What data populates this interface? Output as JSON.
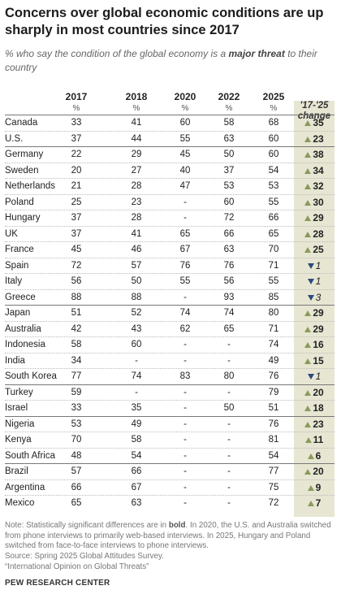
{
  "title": "Concerns over global economic conditions are up sharply in most countries since 2017",
  "subtitle_prefix": "% who say the condition of the global economy is a ",
  "subtitle_emph": "major threat",
  "subtitle_suffix": " to their country",
  "columns": [
    "2017",
    "2018",
    "2020",
    "2022",
    "2025"
  ],
  "pct_symbol": "%",
  "change_header": "'17-'25 change",
  "chart_data": {
    "type": "table",
    "columns": [
      "2017",
      "2018",
      "2020",
      "2022",
      "2025",
      "'17-'25 change"
    ],
    "rows": [
      {
        "country": "Canada",
        "values": [
          "33",
          "41",
          "60",
          "58",
          "68"
        ],
        "change": "35",
        "dir": "up",
        "sig": true
      },
      {
        "country": "U.S.",
        "values": [
          "37",
          "44",
          "55",
          "63",
          "60"
        ],
        "change": "23",
        "dir": "up",
        "sig": true
      },
      {
        "country": "Germany",
        "values": [
          "22",
          "29",
          "45",
          "50",
          "60"
        ],
        "change": "38",
        "dir": "up",
        "sig": true
      },
      {
        "country": "Sweden",
        "values": [
          "20",
          "27",
          "40",
          "37",
          "54"
        ],
        "change": "34",
        "dir": "up",
        "sig": true
      },
      {
        "country": "Netherlands",
        "values": [
          "21",
          "28",
          "47",
          "53",
          "53"
        ],
        "change": "32",
        "dir": "up",
        "sig": true
      },
      {
        "country": "Poland",
        "values": [
          "25",
          "23",
          "-",
          "60",
          "55"
        ],
        "change": "30",
        "dir": "up",
        "sig": true
      },
      {
        "country": "Hungary",
        "values": [
          "37",
          "28",
          "-",
          "72",
          "66"
        ],
        "change": "29",
        "dir": "up",
        "sig": true
      },
      {
        "country": "UK",
        "values": [
          "37",
          "41",
          "65",
          "66",
          "65"
        ],
        "change": "28",
        "dir": "up",
        "sig": true
      },
      {
        "country": "France",
        "values": [
          "45",
          "46",
          "67",
          "63",
          "70"
        ],
        "change": "25",
        "dir": "up",
        "sig": true
      },
      {
        "country": "Spain",
        "values": [
          "72",
          "57",
          "76",
          "76",
          "71"
        ],
        "change": "1",
        "dir": "down",
        "sig": false
      },
      {
        "country": "Italy",
        "values": [
          "56",
          "50",
          "55",
          "56",
          "55"
        ],
        "change": "1",
        "dir": "down",
        "sig": false
      },
      {
        "country": "Greece",
        "values": [
          "88",
          "88",
          "-",
          "93",
          "85"
        ],
        "change": "3",
        "dir": "down",
        "sig": false
      },
      {
        "country": "Japan",
        "values": [
          "51",
          "52",
          "74",
          "74",
          "80"
        ],
        "change": "29",
        "dir": "up",
        "sig": true
      },
      {
        "country": "Australia",
        "values": [
          "42",
          "43",
          "62",
          "65",
          "71"
        ],
        "change": "29",
        "dir": "up",
        "sig": true
      },
      {
        "country": "Indonesia",
        "values": [
          "58",
          "60",
          "-",
          "-",
          "74"
        ],
        "change": "16",
        "dir": "up",
        "sig": true
      },
      {
        "country": "India",
        "values": [
          "34",
          "-",
          "-",
          "-",
          "49"
        ],
        "change": "15",
        "dir": "up",
        "sig": true
      },
      {
        "country": "South Korea",
        "values": [
          "77",
          "74",
          "83",
          "80",
          "76"
        ],
        "change": "1",
        "dir": "down",
        "sig": false
      },
      {
        "country": "Turkey",
        "values": [
          "59",
          "-",
          "-",
          "-",
          "79"
        ],
        "change": "20",
        "dir": "up",
        "sig": true
      },
      {
        "country": "Israel",
        "values": [
          "33",
          "35",
          "-",
          "50",
          "51"
        ],
        "change": "18",
        "dir": "up",
        "sig": true
      },
      {
        "country": "Nigeria",
        "values": [
          "53",
          "49",
          "-",
          "-",
          "76"
        ],
        "change": "23",
        "dir": "up",
        "sig": true
      },
      {
        "country": "Kenya",
        "values": [
          "70",
          "58",
          "-",
          "-",
          "81"
        ],
        "change": "11",
        "dir": "up",
        "sig": true
      },
      {
        "country": "South Africa",
        "values": [
          "48",
          "54",
          "-",
          "-",
          "54"
        ],
        "change": "6",
        "dir": "up",
        "sig": true
      },
      {
        "country": "Brazil",
        "values": [
          "57",
          "66",
          "-",
          "-",
          "77"
        ],
        "change": "20",
        "dir": "up",
        "sig": true
      },
      {
        "country": "Argentina",
        "values": [
          "66",
          "67",
          "-",
          "-",
          "75"
        ],
        "change": "9",
        "dir": "up",
        "sig": true
      },
      {
        "country": "Mexico",
        "values": [
          "65",
          "63",
          "-",
          "-",
          "72"
        ],
        "change": "7",
        "dir": "up",
        "sig": true
      }
    ],
    "group_breaks_after": [
      "U.S.",
      "Greece",
      "South Korea",
      "Israel",
      "South Africa"
    ],
    "colors": {
      "increase": "#8a9a5b",
      "decrease": "#2b4b7c",
      "change_column_bg": "#e7e6d3"
    }
  },
  "note_prefix": "Note: Statistically significant differences are in ",
  "note_bold": "bold",
  "note_suffix": ". In 2020, the U.S. and Australia switched from phone interviews to primarily web-based interviews. In 2025, Hungary and Poland switched from face-to-face interviews to phone interviews.",
  "source_line1": "Source: Spring 2025 Global Attitudes Survey.",
  "source_line2": "“International Opinion on Global Threats”",
  "brand": "PEW RESEARCH CENTER"
}
